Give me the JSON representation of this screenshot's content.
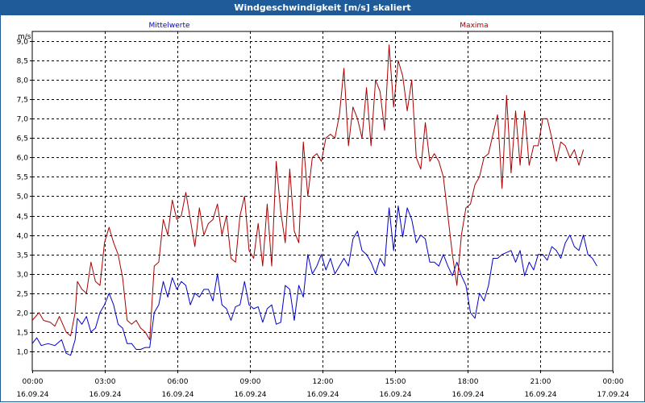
{
  "title": "Windgeschwindigkeit [m/s] skaliert",
  "colors": {
    "title_bar": "#1e5b98",
    "mean": "#0000cc",
    "max": "#aa0000",
    "grid": "#000000"
  },
  "chart_data": {
    "type": "line",
    "title": "Windgeschwindigkeit [m/s] skaliert",
    "ylabel": "m/s",
    "xlabel": "",
    "ylim": [
      0.5,
      9.25
    ],
    "yticks": [
      "1,0",
      "1,5",
      "2,0",
      "2,5",
      "3,0",
      "3,5",
      "4,0",
      "4,5",
      "5,0",
      "5,5",
      "6,0",
      "6,5",
      "7,0",
      "7,5",
      "8,0",
      "8,5",
      "9,0"
    ],
    "ytick_values": [
      1.0,
      1.5,
      2.0,
      2.5,
      3.0,
      3.5,
      4.0,
      4.5,
      5.0,
      5.5,
      6.0,
      6.5,
      7.0,
      7.5,
      8.0,
      8.5,
      9.0
    ],
    "xlim_hours": [
      0,
      24
    ],
    "xticks": [
      {
        "hour": 0,
        "time": "00:00",
        "date": "16.09.24"
      },
      {
        "hour": 3,
        "time": "03:00",
        "date": "16.09.24"
      },
      {
        "hour": 6,
        "time": "06:00",
        "date": "16.09.24"
      },
      {
        "hour": 9,
        "time": "09:00",
        "date": "16.09.24"
      },
      {
        "hour": 12,
        "time": "12:00",
        "date": "16.09.24"
      },
      {
        "hour": 15,
        "time": "15:00",
        "date": "16.09.24"
      },
      {
        "hour": 18,
        "time": "18:00",
        "date": "16.09.24"
      },
      {
        "hour": 21,
        "time": "21:00",
        "date": "16.09.24"
      },
      {
        "hour": 24,
        "time": "00:00",
        "date": "17.09.24"
      }
    ],
    "grid": true,
    "series": [
      {
        "name": "Mittelwerte",
        "color": "#0000cc",
        "points": [
          [
            0.0,
            1.2
          ],
          [
            0.2,
            1.35
          ],
          [
            0.4,
            1.15
          ],
          [
            0.7,
            1.2
          ],
          [
            1.0,
            1.15
          ],
          [
            1.3,
            1.3
          ],
          [
            1.5,
            0.95
          ],
          [
            1.7,
            0.9
          ],
          [
            1.9,
            1.3
          ],
          [
            2.0,
            1.85
          ],
          [
            2.2,
            1.7
          ],
          [
            2.4,
            1.9
          ],
          [
            2.6,
            1.5
          ],
          [
            2.8,
            1.6
          ],
          [
            3.0,
            2.0
          ],
          [
            3.2,
            2.2
          ],
          [
            3.4,
            2.5
          ],
          [
            3.6,
            2.2
          ],
          [
            3.8,
            1.7
          ],
          [
            4.0,
            1.6
          ],
          [
            4.2,
            1.2
          ],
          [
            4.4,
            1.2
          ],
          [
            4.6,
            1.05
          ],
          [
            4.8,
            1.05
          ],
          [
            5.0,
            1.1
          ],
          [
            5.2,
            1.1
          ],
          [
            5.4,
            2.0
          ],
          [
            5.6,
            2.2
          ],
          [
            5.8,
            2.8
          ],
          [
            6.0,
            2.4
          ],
          [
            6.2,
            2.9
          ],
          [
            6.4,
            2.6
          ],
          [
            6.6,
            2.8
          ],
          [
            6.8,
            2.7
          ],
          [
            7.0,
            2.2
          ],
          [
            7.2,
            2.5
          ],
          [
            7.4,
            2.4
          ],
          [
            7.6,
            2.6
          ],
          [
            7.8,
            2.6
          ],
          [
            8.0,
            2.3
          ],
          [
            8.2,
            3.0
          ],
          [
            8.4,
            2.2
          ],
          [
            8.6,
            2.1
          ],
          [
            8.8,
            1.8
          ],
          [
            9.0,
            2.15
          ],
          [
            9.2,
            2.2
          ],
          [
            9.4,
            2.8
          ],
          [
            9.6,
            2.2
          ],
          [
            9.8,
            2.1
          ],
          [
            10.0,
            2.15
          ],
          [
            10.2,
            1.75
          ],
          [
            10.4,
            2.1
          ],
          [
            10.6,
            2.2
          ],
          [
            10.8,
            1.7
          ],
          [
            11.0,
            1.75
          ],
          [
            11.2,
            2.7
          ],
          [
            11.4,
            2.6
          ],
          [
            11.6,
            1.8
          ],
          [
            11.8,
            2.7
          ],
          [
            12.0,
            2.4
          ],
          [
            12.2,
            3.5
          ],
          [
            12.4,
            3.0
          ],
          [
            12.6,
            3.2
          ],
          [
            12.8,
            3.5
          ],
          [
            13.0,
            3.1
          ],
          [
            13.2,
            3.4
          ],
          [
            13.4,
            3.0
          ],
          [
            13.6,
            3.2
          ],
          [
            13.8,
            3.4
          ],
          [
            14.0,
            3.2
          ],
          [
            14.2,
            3.9
          ],
          [
            14.4,
            4.1
          ],
          [
            14.6,
            3.6
          ],
          [
            14.8,
            3.5
          ],
          [
            15.0,
            3.3
          ],
          [
            15.2,
            3.0
          ],
          [
            15.4,
            3.4
          ],
          [
            15.6,
            3.2
          ],
          [
            15.8,
            4.7
          ],
          [
            16.0,
            3.6
          ],
          [
            16.2,
            4.75
          ],
          [
            16.4,
            3.95
          ],
          [
            16.6,
            4.7
          ],
          [
            16.8,
            4.4
          ],
          [
            17.0,
            3.8
          ],
          [
            17.2,
            4.0
          ],
          [
            17.4,
            3.9
          ],
          [
            17.6,
            3.3
          ],
          [
            17.8,
            3.3
          ],
          [
            18.0,
            3.2
          ],
          [
            18.2,
            3.5
          ],
          [
            18.4,
            3.2
          ],
          [
            18.6,
            2.95
          ],
          [
            18.8,
            3.3
          ],
          [
            19.0,
            2.95
          ],
          [
            19.2,
            2.7
          ],
          [
            19.4,
            2.0
          ],
          [
            19.6,
            1.85
          ],
          [
            19.8,
            2.5
          ],
          [
            20.0,
            2.3
          ],
          [
            20.2,
            2.7
          ],
          [
            20.4,
            3.4
          ],
          [
            20.6,
            3.4
          ],
          [
            20.8,
            3.5
          ],
          [
            21.0,
            3.55
          ],
          [
            21.2,
            3.6
          ],
          [
            21.4,
            3.3
          ],
          [
            21.6,
            3.6
          ],
          [
            21.8,
            2.95
          ],
          [
            22.0,
            3.3
          ],
          [
            22.2,
            3.1
          ],
          [
            22.4,
            3.5
          ],
          [
            22.6,
            3.5
          ],
          [
            22.8,
            3.35
          ],
          [
            23.0,
            3.7
          ],
          [
            23.2,
            3.6
          ],
          [
            23.4,
            3.4
          ],
          [
            23.6,
            3.8
          ],
          [
            23.8,
            4.0
          ],
          [
            24.0,
            3.7
          ],
          [
            24.2,
            3.6
          ],
          [
            24.4,
            4.0
          ],
          [
            24.6,
            3.5
          ],
          [
            24.8,
            3.4
          ],
          [
            25.0,
            3.2
          ]
        ]
      },
      {
        "name": "Maxima",
        "color": "#aa0000",
        "points": [
          [
            0.0,
            1.8
          ],
          [
            0.3,
            2.0
          ],
          [
            0.5,
            1.8
          ],
          [
            0.8,
            1.75
          ],
          [
            1.0,
            1.65
          ],
          [
            1.2,
            1.9
          ],
          [
            1.5,
            1.5
          ],
          [
            1.7,
            1.4
          ],
          [
            1.9,
            2.0
          ],
          [
            2.0,
            2.8
          ],
          [
            2.2,
            2.6
          ],
          [
            2.4,
            2.5
          ],
          [
            2.6,
            3.3
          ],
          [
            2.8,
            2.8
          ],
          [
            3.0,
            2.7
          ],
          [
            3.2,
            3.8
          ],
          [
            3.4,
            4.2
          ],
          [
            3.6,
            3.8
          ],
          [
            3.8,
            3.5
          ],
          [
            4.0,
            2.9
          ],
          [
            4.2,
            1.8
          ],
          [
            4.4,
            1.7
          ],
          [
            4.6,
            1.8
          ],
          [
            4.8,
            1.6
          ],
          [
            5.0,
            1.5
          ],
          [
            5.2,
            1.3
          ],
          [
            5.4,
            3.2
          ],
          [
            5.6,
            3.3
          ],
          [
            5.8,
            4.4
          ],
          [
            6.0,
            4.0
          ],
          [
            6.2,
            4.9
          ],
          [
            6.4,
            4.4
          ],
          [
            6.6,
            4.5
          ],
          [
            6.8,
            5.1
          ],
          [
            7.0,
            4.4
          ],
          [
            7.2,
            3.7
          ],
          [
            7.4,
            4.7
          ],
          [
            7.6,
            4.0
          ],
          [
            7.8,
            4.3
          ],
          [
            8.0,
            4.4
          ],
          [
            8.2,
            4.8
          ],
          [
            8.4,
            4.0
          ],
          [
            8.6,
            4.5
          ],
          [
            8.8,
            3.4
          ],
          [
            9.0,
            3.3
          ],
          [
            9.2,
            4.5
          ],
          [
            9.4,
            5.0
          ],
          [
            9.6,
            3.6
          ],
          [
            9.8,
            3.4
          ],
          [
            10.0,
            4.3
          ],
          [
            10.2,
            3.2
          ],
          [
            10.4,
            4.8
          ],
          [
            10.6,
            3.2
          ],
          [
            10.8,
            5.9
          ],
          [
            11.0,
            4.6
          ],
          [
            11.2,
            3.8
          ],
          [
            11.4,
            5.7
          ],
          [
            11.6,
            4.1
          ],
          [
            11.8,
            3.8
          ],
          [
            12.0,
            6.4
          ],
          [
            12.2,
            5.0
          ],
          [
            12.4,
            6.0
          ],
          [
            12.6,
            6.1
          ],
          [
            12.8,
            5.9
          ],
          [
            13.0,
            6.5
          ],
          [
            13.2,
            6.6
          ],
          [
            13.4,
            6.5
          ],
          [
            13.6,
            7.1
          ],
          [
            13.8,
            8.3
          ],
          [
            14.0,
            6.3
          ],
          [
            14.2,
            7.3
          ],
          [
            14.4,
            7.0
          ],
          [
            14.6,
            6.5
          ],
          [
            14.8,
            7.8
          ],
          [
            15.0,
            6.3
          ],
          [
            15.2,
            8.0
          ],
          [
            15.4,
            7.7
          ],
          [
            15.6,
            6.7
          ],
          [
            15.8,
            8.9
          ],
          [
            16.0,
            7.3
          ],
          [
            16.2,
            8.5
          ],
          [
            16.4,
            8.1
          ],
          [
            16.6,
            7.2
          ],
          [
            16.8,
            8.0
          ],
          [
            17.0,
            6.0
          ],
          [
            17.2,
            5.7
          ],
          [
            17.4,
            6.9
          ],
          [
            17.6,
            5.9
          ],
          [
            17.8,
            6.1
          ],
          [
            18.0,
            5.9
          ],
          [
            18.2,
            5.5
          ],
          [
            18.4,
            4.5
          ],
          [
            18.6,
            3.5
          ],
          [
            18.8,
            2.7
          ],
          [
            19.0,
            4.0
          ],
          [
            19.2,
            4.7
          ],
          [
            19.4,
            4.8
          ],
          [
            19.6,
            5.3
          ],
          [
            19.8,
            5.5
          ],
          [
            20.0,
            6.0
          ],
          [
            20.2,
            6.1
          ],
          [
            20.4,
            6.6
          ],
          [
            20.6,
            7.1
          ],
          [
            20.8,
            5.2
          ],
          [
            21.0,
            7.6
          ],
          [
            21.2,
            5.6
          ],
          [
            21.4,
            7.2
          ],
          [
            21.6,
            5.8
          ],
          [
            21.8,
            7.2
          ],
          [
            22.0,
            5.8
          ],
          [
            22.2,
            6.3
          ],
          [
            22.4,
            6.3
          ],
          [
            22.6,
            7.0
          ],
          [
            22.8,
            7.0
          ],
          [
            23.0,
            6.5
          ],
          [
            23.2,
            5.9
          ],
          [
            23.4,
            6.4
          ],
          [
            23.6,
            6.3
          ],
          [
            23.8,
            6.0
          ],
          [
            24.0,
            6.2
          ],
          [
            24.2,
            5.8
          ],
          [
            24.4,
            6.2
          ]
        ]
      }
    ]
  }
}
